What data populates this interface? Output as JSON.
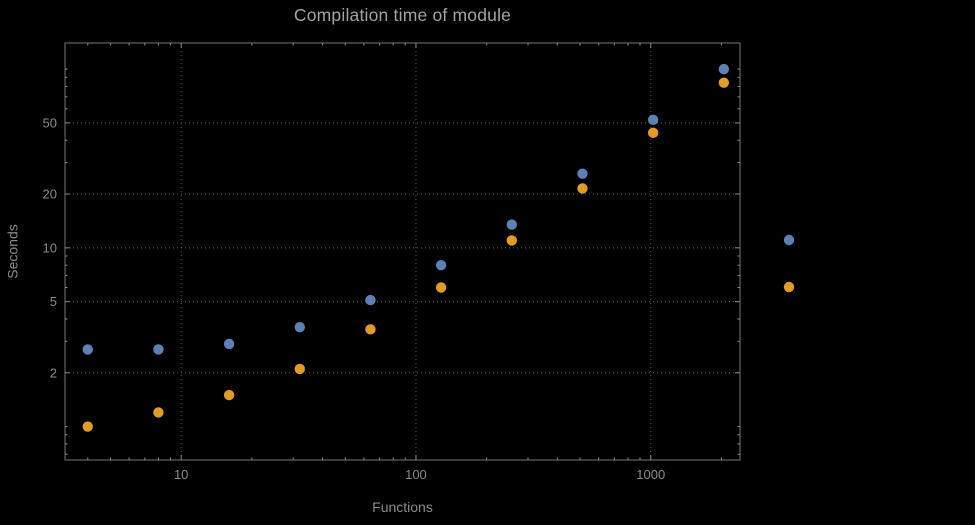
{
  "window": {
    "background": "#000000"
  },
  "chart_data": {
    "type": "scatter",
    "title": "Compilation time of module",
    "xlabel": "Functions",
    "ylabel": "Seconds",
    "x_scale": "log",
    "y_scale": "log",
    "xlim": [
      3.2,
      2400
    ],
    "ylim": [
      0.65,
      140
    ],
    "x_ticks": [
      10,
      100,
      1000
    ],
    "y_ticks": [
      2,
      5,
      10,
      20,
      50
    ],
    "grid": true,
    "x": [
      4,
      8,
      16,
      32,
      64,
      128,
      256,
      512,
      1024,
      2048
    ],
    "series": [
      {
        "name": "blue",
        "color": "#5E81B5",
        "values": [
          2.7,
          2.7,
          2.9,
          3.6,
          5.1,
          8,
          13.5,
          26,
          52,
          100
        ]
      },
      {
        "name": "orange",
        "color": "#E09C24",
        "values": [
          1.0,
          1.2,
          1.5,
          2.1,
          3.5,
          6,
          11,
          21.5,
          44,
          84
        ]
      }
    ],
    "legend": {
      "position": "right-outside"
    }
  },
  "colors": {
    "background": "#000000",
    "grid": "#5a5a5a",
    "frame": "#767676",
    "tick_text": "#8a8a8a",
    "title_text": "#a3a3a3",
    "series_blue": "#5E81B5",
    "series_orange": "#E09C24"
  }
}
